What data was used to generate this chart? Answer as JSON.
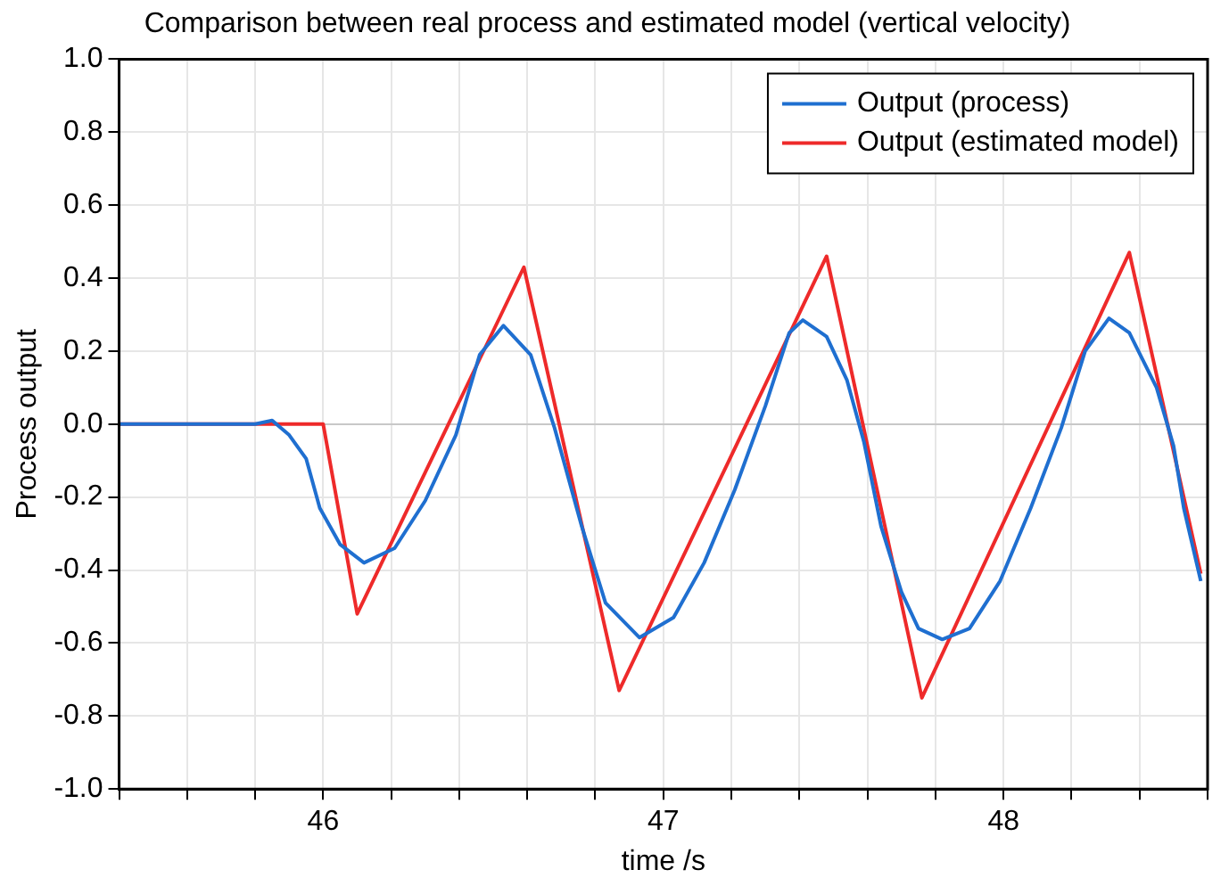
{
  "chart_data": {
    "type": "line",
    "title": "Comparison between real process and estimated model (vertical velocity)",
    "xlabel": "time /s",
    "ylabel": "Process output",
    "xlim": [
      45.4,
      48.6
    ],
    "xticks": [
      {
        "value": 45.4,
        "label": null
      },
      {
        "value": 45.6,
        "label": null
      },
      {
        "value": 45.8,
        "label": null
      },
      46,
      {
        "value": 46.2,
        "label": null
      },
      {
        "value": 46.4,
        "label": null
      },
      {
        "value": 46.6,
        "label": null
      },
      {
        "value": 46.8,
        "label": null
      },
      47,
      {
        "value": 47.2,
        "label": null
      },
      {
        "value": 47.4,
        "label": null
      },
      {
        "value": 47.6,
        "label": null
      },
      {
        "value": 47.8,
        "label": null
      },
      48,
      {
        "value": 48.2,
        "label": null
      },
      {
        "value": 48.4,
        "label": null
      },
      {
        "value": 48.6,
        "label": null
      }
    ],
    "ylim": [
      -1,
      1
    ],
    "yticks": [
      {
        "value": -1,
        "label": "-1.0"
      },
      -0.8,
      -0.6,
      -0.4,
      -0.2,
      {
        "value": 0,
        "label": "0.0"
      },
      0.2,
      0.4,
      0.6,
      0.8,
      {
        "value": 1,
        "label": "1.0"
      }
    ],
    "grid": true,
    "legend": "top right",
    "marker": "none",
    "line_style": "solid",
    "series": [
      {
        "name": "Output (process)",
        "color": "#1f6fd0",
        "x": [
          45.4,
          45.8,
          45.85,
          45.9,
          45.95,
          45.99,
          46.05,
          46.12,
          46.21,
          46.3,
          46.39,
          46.46,
          46.53,
          46.61,
          46.68,
          46.76,
          46.83,
          46.93,
          47.03,
          47.12,
          47.21,
          47.3,
          47.37,
          47.41,
          47.48,
          47.54,
          47.59,
          47.64,
          47.7,
          47.75,
          47.82,
          47.9,
          47.99,
          48.08,
          48.17,
          48.24,
          48.31,
          48.37,
          48.45,
          48.5,
          48.53,
          48.58
        ],
        "values": [
          0,
          0,
          0.01,
          -0.03,
          -0.095,
          -0.23,
          -0.33,
          -0.38,
          -0.34,
          -0.21,
          -0.03,
          0.19,
          0.27,
          0.19,
          -0.01,
          -0.28,
          -0.49,
          -0.585,
          -0.53,
          -0.38,
          -0.18,
          0.05,
          0.25,
          0.285,
          0.24,
          0.12,
          -0.05,
          -0.28,
          -0.46,
          -0.56,
          -0.59,
          -0.56,
          -0.43,
          -0.23,
          -0.01,
          0.2,
          0.29,
          0.25,
          0.1,
          -0.06,
          -0.23,
          -0.43
        ]
      },
      {
        "name": "Output (estimated model)",
        "color": "#ee2a2a",
        "x": [
          45.4,
          46.0,
          46.1,
          46.59,
          46.87,
          47.48,
          47.76,
          48.37,
          48.58
        ],
        "values": [
          0,
          0,
          -0.52,
          0.43,
          -0.73,
          0.46,
          -0.75,
          0.47,
          -0.41
        ]
      }
    ]
  }
}
